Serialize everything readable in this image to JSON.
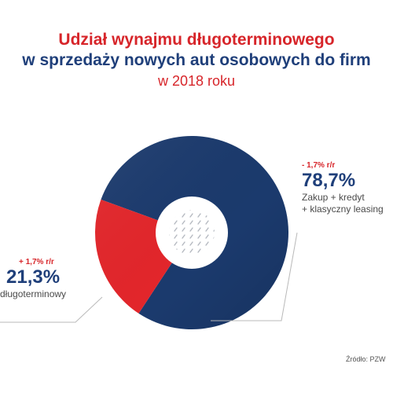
{
  "title": {
    "line1": "Udział wynajmu długoterminowego",
    "line2": "w sprzedaży nowych aut osobowych do firm",
    "line3": "w 2018 roku"
  },
  "chart_data": {
    "type": "pie",
    "donut": true,
    "slices": [
      {
        "label": "Zakup + kredyt + klasyczny leasing",
        "value": 78.7,
        "display": "78,7%",
        "change": "- 1,7% r/r",
        "color": "#1b3a6d"
      },
      {
        "label": "długoterminowy",
        "value": 21.3,
        "display": "21,3%",
        "change": "+ 1,7% r/r",
        "color": "#e3262b"
      }
    ]
  },
  "labels": {
    "right": {
      "change": "- 1,7% r/r",
      "pct": "78,7%",
      "desc1": "Zakup + kredyt",
      "desc2": "+ klasyczny leasing"
    },
    "left": {
      "change": "+ 1,7% r/r",
      "pct": "21,3%",
      "desc1": "długoterminowy"
    }
  },
  "source": "Źródło: PZW",
  "colors": {
    "navy": "#1b3a6d",
    "red": "#e3262b",
    "title_red": "#d7252a",
    "title_navy": "#1f3f7a"
  }
}
